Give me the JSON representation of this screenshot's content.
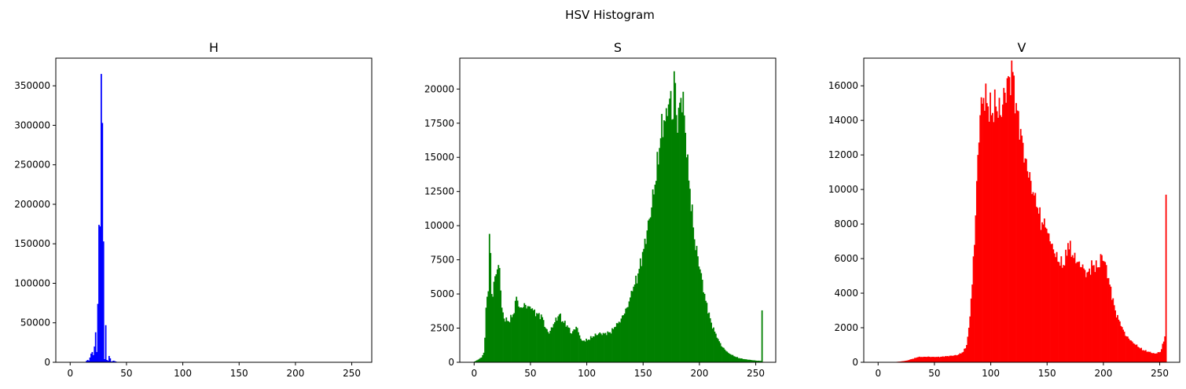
{
  "suptitle": "HSV Histogram",
  "chart_data": [
    {
      "type": "bar",
      "title": "H",
      "color": "#0000ff",
      "bins": 256,
      "xlim": [
        -12.75,
        267.75
      ],
      "ylim": [
        0,
        385000
      ],
      "xticks": [
        0,
        50,
        100,
        150,
        200,
        250
      ],
      "yticks": [
        0,
        50000,
        100000,
        150000,
        200000,
        250000,
        300000,
        350000
      ],
      "points": [
        [
          14,
          2000
        ],
        [
          15,
          3000
        ],
        [
          16,
          2000
        ],
        [
          17,
          6000
        ],
        [
          18,
          11000
        ],
        [
          19,
          13000
        ],
        [
          20,
          9000
        ],
        [
          21,
          20000
        ],
        [
          22,
          38000
        ],
        [
          23,
          13000
        ],
        [
          24,
          74000
        ],
        [
          25,
          174000
        ],
        [
          26,
          172000
        ],
        [
          27,
          365000
        ],
        [
          28,
          303000
        ],
        [
          29,
          153000
        ],
        [
          30,
          4000
        ],
        [
          31,
          47000
        ],
        [
          32,
          3000
        ],
        [
          33,
          2000
        ],
        [
          34,
          8000
        ],
        [
          35,
          5000
        ],
        [
          36,
          1000
        ],
        [
          38,
          2000
        ],
        [
          40,
          1000
        ]
      ]
    },
    {
      "type": "bar",
      "title": "S",
      "color": "#008000",
      "bins": 256,
      "xlim": [
        -12.75,
        267.75
      ],
      "ylim": [
        0,
        22260
      ],
      "xticks": [
        0,
        50,
        100,
        150,
        200,
        250
      ],
      "yticks": [
        0,
        2500,
        5000,
        7500,
        10000,
        12500,
        15000,
        17500,
        20000
      ],
      "points": [
        [
          0,
          60
        ],
        [
          2,
          150
        ],
        [
          4,
          250
        ],
        [
          6,
          350
        ],
        [
          8,
          700
        ],
        [
          9,
          1800
        ],
        [
          10,
          4000
        ],
        [
          11,
          4800
        ],
        [
          12,
          5200
        ],
        [
          13,
          9400
        ],
        [
          14,
          8000
        ],
        [
          15,
          5000
        ],
        [
          16,
          4800
        ],
        [
          18,
          6300
        ],
        [
          20,
          6800
        ],
        [
          22,
          6900
        ],
        [
          24,
          4000
        ],
        [
          26,
          3200
        ],
        [
          30,
          3000
        ],
        [
          35,
          3600
        ],
        [
          37,
          4800
        ],
        [
          40,
          4000
        ],
        [
          45,
          4200
        ],
        [
          50,
          3900
        ],
        [
          55,
          3600
        ],
        [
          60,
          3300
        ],
        [
          63,
          2500
        ],
        [
          66,
          2100
        ],
        [
          70,
          2800
        ],
        [
          75,
          3500
        ],
        [
          78,
          3000
        ],
        [
          82,
          2700
        ],
        [
          86,
          2100
        ],
        [
          90,
          2600
        ],
        [
          95,
          1600
        ],
        [
          100,
          1600
        ],
        [
          105,
          1900
        ],
        [
          110,
          2100
        ],
        [
          115,
          2100
        ],
        [
          120,
          2200
        ],
        [
          125,
          2600
        ],
        [
          130,
          3200
        ],
        [
          135,
          4000
        ],
        [
          140,
          5200
        ],
        [
          145,
          6500
        ],
        [
          150,
          8300
        ],
        [
          155,
          10500
        ],
        [
          160,
          13000
        ],
        [
          165,
          16400
        ],
        [
          170,
          18600
        ],
        [
          173,
          19300
        ],
        [
          176,
          17800
        ],
        [
          177,
          21300
        ],
        [
          180,
          16800
        ],
        [
          182,
          19000
        ],
        [
          185,
          19800
        ],
        [
          188,
          15000
        ],
        [
          191,
          12700
        ],
        [
          195,
          9000
        ],
        [
          200,
          6800
        ],
        [
          205,
          4500
        ],
        [
          210,
          2900
        ],
        [
          215,
          1800
        ],
        [
          220,
          1100
        ],
        [
          225,
          700
        ],
        [
          230,
          450
        ],
        [
          235,
          300
        ],
        [
          240,
          220
        ],
        [
          245,
          170
        ],
        [
          250,
          120
        ],
        [
          254,
          100
        ],
        [
          255,
          3800
        ]
      ]
    },
    {
      "type": "bar",
      "title": "V",
      "color": "#ff0000",
      "bins": 256,
      "xlim": [
        -12.75,
        267.75
      ],
      "ylim": [
        0,
        17600
      ],
      "xticks": [
        0,
        50,
        100,
        150,
        200,
        250
      ],
      "yticks": [
        0,
        2000,
        4000,
        6000,
        8000,
        10000,
        12000,
        14000,
        16000
      ],
      "points": [
        [
          0,
          0
        ],
        [
          10,
          5
        ],
        [
          15,
          20
        ],
        [
          20,
          50
        ],
        [
          25,
          100
        ],
        [
          30,
          200
        ],
        [
          35,
          300
        ],
        [
          40,
          320
        ],
        [
          45,
          320
        ],
        [
          50,
          300
        ],
        [
          55,
          320
        ],
        [
          60,
          350
        ],
        [
          65,
          380
        ],
        [
          70,
          420
        ],
        [
          75,
          600
        ],
        [
          78,
          1000
        ],
        [
          80,
          2000
        ],
        [
          83,
          4500
        ],
        [
          86,
          8500
        ],
        [
          88,
          12000
        ],
        [
          90,
          14300
        ],
        [
          93,
          15300
        ],
        [
          96,
          15000
        ],
        [
          100,
          14300
        ],
        [
          104,
          14800
        ],
        [
          108,
          14300
        ],
        [
          112,
          15600
        ],
        [
          116,
          16500
        ],
        [
          119,
          16800
        ],
        [
          122,
          15000
        ],
        [
          126,
          13500
        ],
        [
          130,
          11800
        ],
        [
          135,
          10500
        ],
        [
          140,
          9000
        ],
        [
          145,
          8100
        ],
        [
          148,
          7800
        ],
        [
          152,
          7000
        ],
        [
          156,
          6300
        ],
        [
          160,
          5800
        ],
        [
          165,
          5600
        ],
        [
          168,
          6900
        ],
        [
          172,
          6200
        ],
        [
          176,
          5800
        ],
        [
          180,
          5500
        ],
        [
          185,
          5200
        ],
        [
          190,
          5600
        ],
        [
          195,
          5500
        ],
        [
          198,
          6200
        ],
        [
          201,
          5800
        ],
        [
          205,
          4500
        ],
        [
          210,
          3000
        ],
        [
          215,
          2100
        ],
        [
          220,
          1500
        ],
        [
          225,
          1200
        ],
        [
          230,
          900
        ],
        [
          235,
          700
        ],
        [
          240,
          600
        ],
        [
          245,
          500
        ],
        [
          250,
          600
        ],
        [
          253,
          1200
        ],
        [
          254,
          1500
        ],
        [
          255,
          9700
        ]
      ]
    }
  ]
}
